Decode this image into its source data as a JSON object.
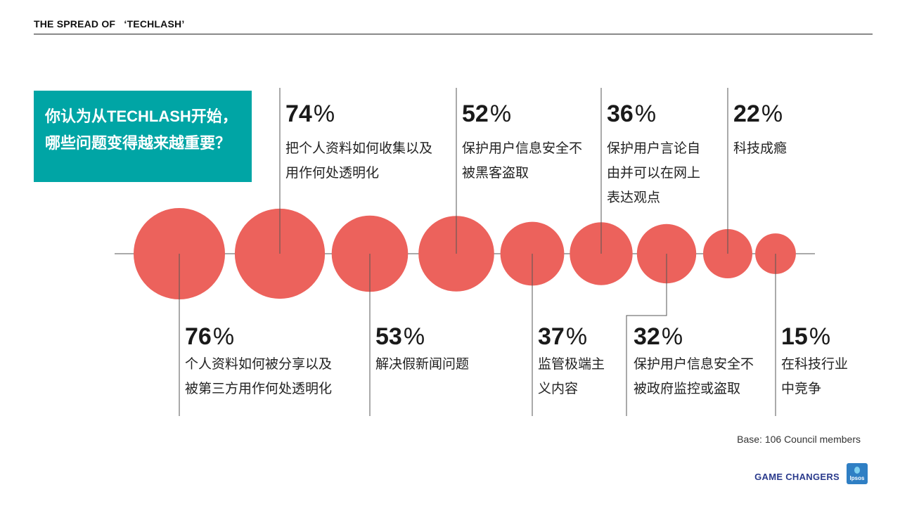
{
  "header": {
    "title": "THE SPREAD OF   ‘TECHLASH’"
  },
  "question": {
    "line1": "你认为从TECHLASH开始，",
    "line2": "哪些问题变得越来越重要？"
  },
  "footer": {
    "base": "Base: 106 Council members",
    "brand": "GAME CHANGERS",
    "logo_text": "Ipsos"
  },
  "colors": {
    "bubble": "#ec625c",
    "question_bg": "#00a5a5",
    "line": "#555555"
  },
  "chart_data": {
    "type": "bubble",
    "unit": "%",
    "items": [
      {
        "value": 76,
        "label_lines": [
          "个人资料如何被分享以及",
          "被第三方用作何处透明化"
        ],
        "label_side": "bottom"
      },
      {
        "value": 74,
        "label_lines": [
          "把个人资料如何收集以及",
          "用作何处透明化"
        ],
        "label_side": "top"
      },
      {
        "value": 53,
        "label_lines": [
          "解决假新闻问题"
        ],
        "label_side": "bottom"
      },
      {
        "value": 52,
        "label_lines": [
          "保护用户信息安全不",
          "被黑客盗取"
        ],
        "label_side": "top"
      },
      {
        "value": 37,
        "label_lines": [
          "监管极端主",
          "义内容"
        ],
        "label_side": "bottom"
      },
      {
        "value": 36,
        "label_lines": [
          "保护用户言论自",
          "由并可以在网上",
          "表达观点"
        ],
        "label_side": "top"
      },
      {
        "value": 32,
        "label_lines": [
          "保护用户信息安全不",
          "被政府监控或盗取"
        ],
        "label_side": "bottom"
      },
      {
        "value": 22,
        "label_lines": [
          "科技成瘾"
        ],
        "label_side": "top"
      },
      {
        "value": 15,
        "label_lines": [
          "在科技行业",
          "中竞争"
        ],
        "label_side": "bottom"
      }
    ]
  }
}
